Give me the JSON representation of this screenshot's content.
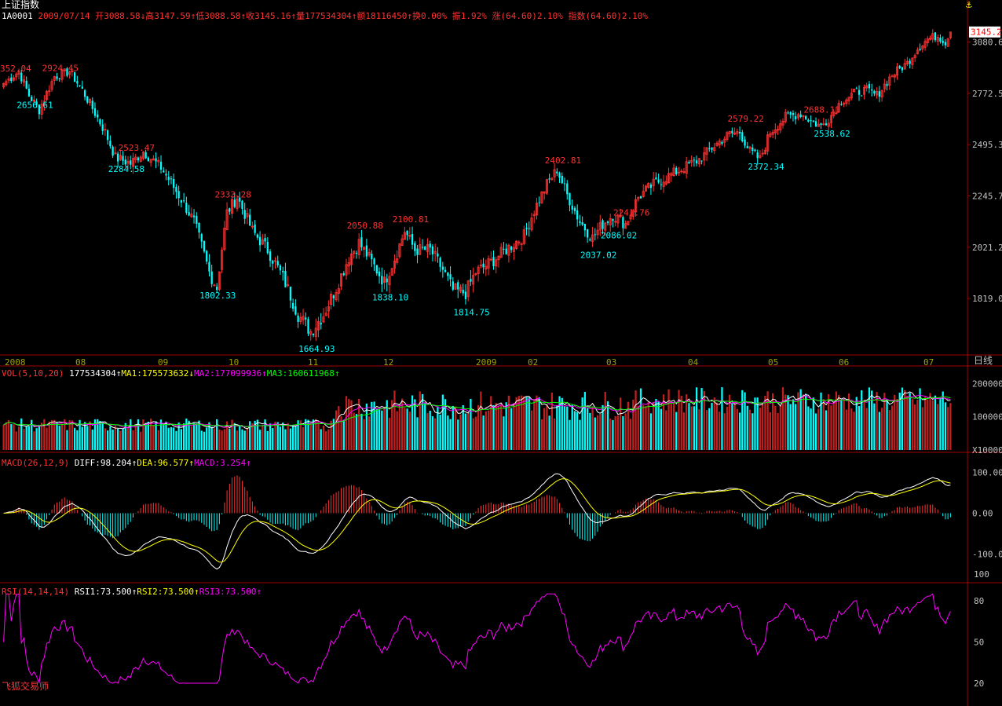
{
  "header": {
    "title": "上证指数",
    "code": "1A0001",
    "date": "2009/07/14",
    "quote": "开3088.58↓高3147.59↑低3088.58↑收3145.16↑量177534304↑额18116450↑换0.00% 振1.92% 涨(64.60)2.10% 指数(64.60)2.10%"
  },
  "period_label": "日线",
  "anchor_icon": "anchor-icon",
  "brand": "飞狐交易师",
  "colors": {
    "up": "#ff3232",
    "down": "#00ffff",
    "text": "#c0c0c0",
    "axis": "#a00000",
    "ma1": "#ffffff",
    "ma2": "#ff00ff",
    "ma3": "#00ff00",
    "diff": "#ffffff",
    "dea": "#ffff00",
    "rsi": "#ff00ff"
  },
  "chart_data": [
    {
      "type": "candlestick",
      "title": "上证指数",
      "price_ticks": [
        "3080.6",
        "2772.5",
        "2495.3",
        "2245.7",
        "2021.2",
        "1819.0"
      ],
      "current_price_tag": "3145.2",
      "x_ticks": [
        "2008",
        "08",
        "09",
        "10",
        "11",
        "12",
        "2009",
        "02",
        "03",
        "04",
        "05",
        "06",
        "07"
      ],
      "annotations": [
        {
          "label": "352.04",
          "kind": "high"
        },
        {
          "label": "2924.45",
          "kind": "high"
        },
        {
          "label": "2656.61",
          "kind": "low"
        },
        {
          "label": "2523.47",
          "kind": "high"
        },
        {
          "label": "2284.58",
          "kind": "low"
        },
        {
          "label": "2333.28",
          "kind": "high"
        },
        {
          "label": "1802.33",
          "kind": "low"
        },
        {
          "label": "1664.93",
          "kind": "low"
        },
        {
          "label": "2050.88",
          "kind": "high"
        },
        {
          "label": "2100.81",
          "kind": "high"
        },
        {
          "label": "1838.10",
          "kind": "low"
        },
        {
          "label": "1814.75",
          "kind": "low"
        },
        {
          "label": "2402.81",
          "kind": "high"
        },
        {
          "label": "2241.76",
          "kind": "high"
        },
        {
          "label": "2037.02",
          "kind": "low"
        },
        {
          "label": "2086.02",
          "kind": "low"
        },
        {
          "label": "2579.22",
          "kind": "high"
        },
        {
          "label": "2372.34",
          "kind": "low"
        },
        {
          "label": "2688.11",
          "kind": "high"
        },
        {
          "label": "2538.62",
          "kind": "low"
        }
      ],
      "close_path_waypoints": [
        [
          0,
          2830
        ],
        [
          6,
          2900
        ],
        [
          10,
          2760
        ],
        [
          14,
          2680
        ],
        [
          20,
          2870
        ],
        [
          26,
          2900
        ],
        [
          31,
          2790
        ],
        [
          40,
          2560
        ],
        [
          44,
          2430
        ],
        [
          50,
          2400
        ],
        [
          55,
          2460
        ],
        [
          62,
          2380
        ],
        [
          70,
          2230
        ],
        [
          75,
          2130
        ],
        [
          81,
          1920
        ],
        [
          84,
          1860
        ],
        [
          88,
          2170
        ],
        [
          92,
          2240
        ],
        [
          98,
          2090
        ],
        [
          104,
          2010
        ],
        [
          110,
          1900
        ],
        [
          116,
          1760
        ],
        [
          121,
          1700
        ],
        [
          126,
          1760
        ],
        [
          131,
          1860
        ],
        [
          136,
          1980
        ],
        [
          140,
          2040
        ],
        [
          145,
          1960
        ],
        [
          150,
          1880
        ],
        [
          155,
          2000
        ],
        [
          158,
          2090
        ],
        [
          162,
          2010
        ],
        [
          168,
          2010
        ],
        [
          173,
          1930
        ],
        [
          177,
          1850
        ],
        [
          182,
          1840
        ],
        [
          186,
          1920
        ],
        [
          192,
          1960
        ],
        [
          199,
          2020
        ],
        [
          205,
          2070
        ],
        [
          209,
          2180
        ],
        [
          214,
          2300
        ],
        [
          218,
          2370
        ],
        [
          222,
          2250
        ],
        [
          227,
          2130
        ],
        [
          232,
          2060
        ],
        [
          236,
          2120
        ],
        [
          240,
          2160
        ],
        [
          245,
          2120
        ],
        [
          250,
          2240
        ],
        [
          256,
          2300
        ],
        [
          262,
          2340
        ],
        [
          268,
          2380
        ],
        [
          274,
          2420
        ],
        [
          280,
          2490
        ],
        [
          286,
          2550
        ],
        [
          290,
          2560
        ],
        [
          294,
          2460
        ],
        [
          298,
          2420
        ],
        [
          302,
          2560
        ],
        [
          308,
          2640
        ],
        [
          314,
          2660
        ],
        [
          318,
          2620
        ],
        [
          322,
          2590
        ],
        [
          326,
          2650
        ],
        [
          330,
          2730
        ],
        [
          336,
          2780
        ],
        [
          340,
          2790
        ],
        [
          344,
          2760
        ],
        [
          350,
          2880
        ],
        [
          356,
          2950
        ],
        [
          360,
          3040
        ],
        [
          364,
          3100
        ],
        [
          368,
          3120
        ],
        [
          371,
          3080
        ],
        [
          373,
          3145.16
        ]
      ]
    },
    {
      "type": "bar",
      "title": "VOL",
      "params": "VOL(5,10,20)",
      "legend": [
        {
          "label": "177534304",
          "arrow": "↑",
          "color": "#ffffff"
        },
        {
          "label": "MA1:175573632",
          "arrow": "↓",
          "color": "#ffff00"
        },
        {
          "label": "MA2:177099936",
          "arrow": "↑",
          "color": "#ff00ff"
        },
        {
          "label": "MA3:160611968",
          "arrow": "↑",
          "color": "#00ff00"
        }
      ],
      "y_ticks": [
        "200000",
        "100000",
        "X10000"
      ]
    },
    {
      "type": "bar",
      "title": "MACD",
      "params": "MACD(26,12,9)",
      "legend": [
        {
          "label": "DIFF:98.204",
          "arrow": "↑",
          "color": "#ffffff"
        },
        {
          "label": "DEA:96.577",
          "arrow": "↑",
          "color": "#ffff00"
        },
        {
          "label": "MACD:3.254",
          "arrow": "↑",
          "color": "#ff00ff"
        }
      ],
      "y_ticks": [
        "100.00",
        "0.00",
        "-100.0"
      ]
    },
    {
      "type": "line",
      "title": "RSI",
      "params": "RSI(14,14,14)",
      "legend": [
        {
          "label": "RSI1:73.500",
          "arrow": "↑",
          "color": "#ffffff"
        },
        {
          "label": "RSI2:73.500",
          "arrow": "↑",
          "color": "#ffff00"
        },
        {
          "label": "RSI3:73.500",
          "arrow": "↑",
          "color": "#ff00ff"
        }
      ],
      "y_ticks": [
        "100",
        "80",
        "50",
        "20"
      ]
    }
  ]
}
